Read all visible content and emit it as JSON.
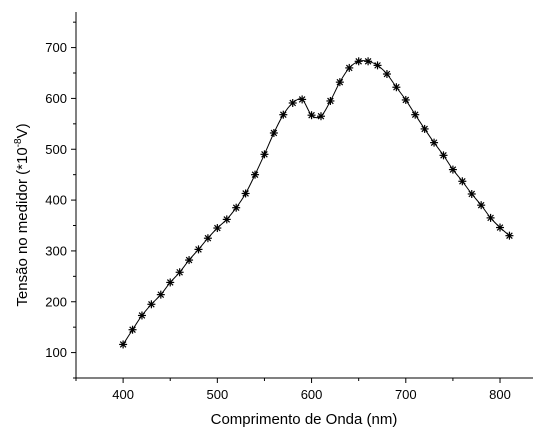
{
  "chart_data": {
    "type": "line",
    "xlabel": "Comprimento de Onda (nm)",
    "ylabel_main": "Tensão no medidor (*10",
    "ylabel_exp": "-8",
    "ylabel_unit": "V)",
    "xlim": [
      350,
      835
    ],
    "ylim": [
      50,
      770
    ],
    "xticks": [
      400,
      500,
      600,
      700,
      800
    ],
    "yticks": [
      100,
      200,
      300,
      400,
      500,
      600,
      700
    ],
    "marker": "asterisk",
    "line_color": "#000000",
    "x": [
      400,
      410,
      420,
      430,
      440,
      450,
      460,
      470,
      480,
      490,
      500,
      510,
      520,
      530,
      540,
      550,
      560,
      570,
      580,
      590,
      600,
      610,
      620,
      630,
      640,
      650,
      660,
      670,
      680,
      690,
      700,
      710,
      720,
      730,
      740,
      750,
      760,
      770,
      780,
      790,
      800,
      810
    ],
    "y": [
      116,
      145,
      173,
      195,
      214,
      238,
      258,
      282,
      303,
      325,
      345,
      362,
      385,
      413,
      450,
      490,
      532,
      568,
      591,
      598,
      567,
      565,
      595,
      632,
      660,
      673,
      673,
      665,
      648,
      622,
      597,
      568,
      540,
      513,
      488,
      460,
      437,
      412,
      390,
      365,
      346,
      330
    ]
  }
}
